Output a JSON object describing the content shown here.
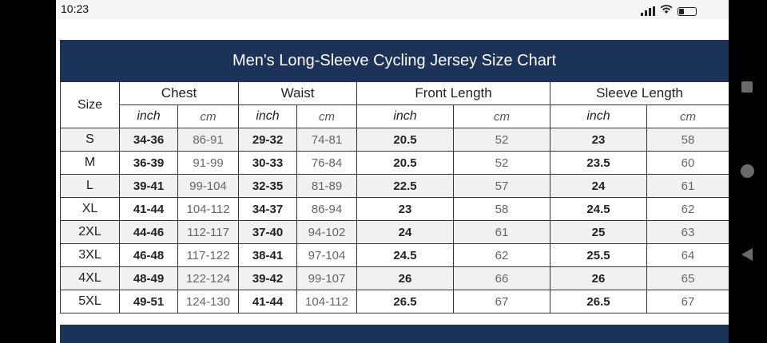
{
  "status_bar": {
    "time": "10:23"
  },
  "chart": {
    "title": "Men's Long-Sleeve Cycling Jersey Size Chart",
    "size_label": "Size",
    "groups": [
      "Chest",
      "Waist",
      "Front Length",
      "Sleeve Length"
    ],
    "units": [
      "inch",
      "cm",
      "inch",
      "cm",
      "inch",
      "cm",
      "inch",
      "cm"
    ],
    "rows": [
      [
        "S",
        "34-36",
        "86-91",
        "29-32",
        "74-81",
        "20.5",
        "52",
        "23",
        "58"
      ],
      [
        "M",
        "36-39",
        "91-99",
        "30-33",
        "76-84",
        "20.5",
        "52",
        "23.5",
        "60"
      ],
      [
        "L",
        "39-41",
        "99-104",
        "32-35",
        "81-89",
        "22.5",
        "57",
        "24",
        "61"
      ],
      [
        "XL",
        "41-44",
        "104-112",
        "34-37",
        "86-94",
        "23",
        "58",
        "24.5",
        "62"
      ],
      [
        "2XL",
        "44-46",
        "112-117",
        "37-40",
        "94-102",
        "24",
        "61",
        "25",
        "63"
      ],
      [
        "3XL",
        "46-48",
        "117-122",
        "38-41",
        "97-104",
        "24.5",
        "62",
        "25.5",
        "64"
      ],
      [
        "4XL",
        "48-49",
        "122-124",
        "39-42",
        "99-107",
        "26",
        "66",
        "26",
        "65"
      ],
      [
        "5XL",
        "49-51",
        "124-130",
        "41-44",
        "104-112",
        "26.5",
        "67",
        "26.5",
        "67"
      ]
    ]
  },
  "colors": {
    "header_bg": "#1b3259",
    "shade_row": "#f1f1f1"
  },
  "icons": {
    "signal": "signal-icon",
    "wifi": "wifi-icon",
    "battery": "battery-icon",
    "recents": "recents-icon",
    "home": "home-icon",
    "back": "back-icon"
  }
}
